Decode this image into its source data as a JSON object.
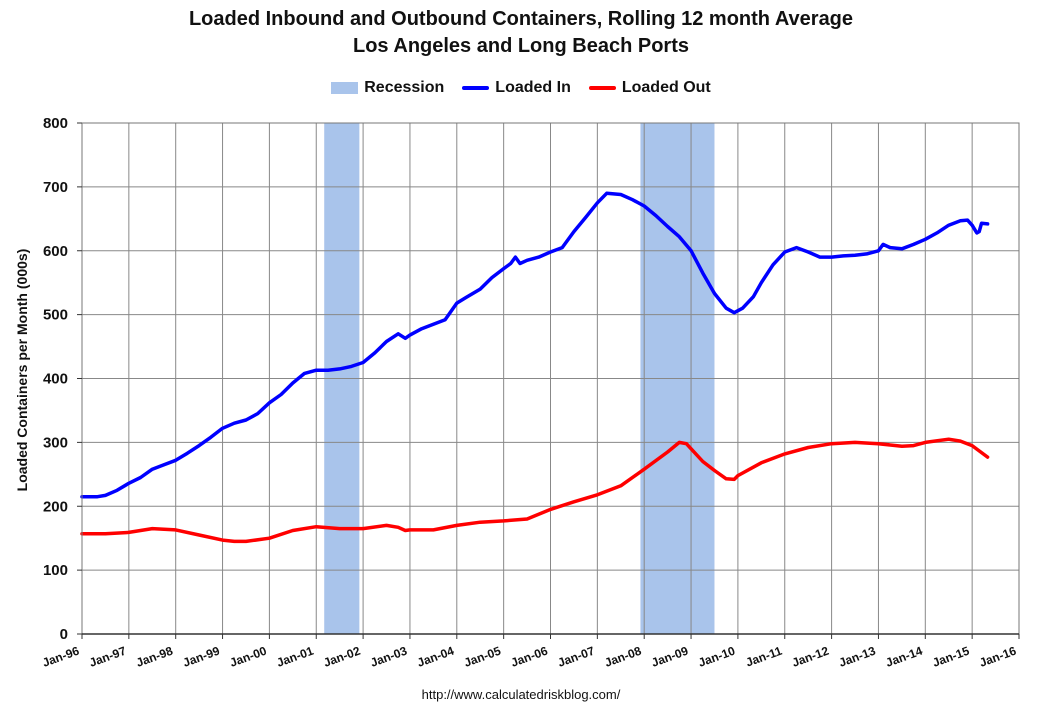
{
  "chart_data": {
    "type": "line",
    "title": "Loaded Inbound and Outbound Containers, Rolling 12 month Average",
    "subtitle": "Los Angeles and Long Beach Ports",
    "xlabel": "",
    "ylabel": "Loaded Containers per Month (000s)",
    "ylim": [
      0,
      800
    ],
    "yticks": [
      0,
      100,
      200,
      300,
      400,
      500,
      600,
      700,
      800
    ],
    "xlim": [
      1996.0,
      2016.0
    ],
    "xticks": [
      "Jan-96",
      "Jan-97",
      "Jan-98",
      "Jan-99",
      "Jan-00",
      "Jan-01",
      "Jan-02",
      "Jan-03",
      "Jan-04",
      "Jan-05",
      "Jan-06",
      "Jan-07",
      "Jan-08",
      "Jan-09",
      "Jan-10",
      "Jan-11",
      "Jan-12",
      "Jan-13",
      "Jan-14",
      "Jan-15",
      "Jan-16"
    ],
    "grid": true,
    "legend_position": "top-center",
    "legend": [
      "Recession",
      "Loaded In",
      "Loaded Out"
    ],
    "colors": {
      "recession": "#a9c4eb",
      "loaded_in": "#0000ff",
      "loaded_out": "#ff0000",
      "grid": "#888888"
    },
    "recessions": [
      {
        "start": 2001.17,
        "end": 2001.92
      },
      {
        "start": 2007.92,
        "end": 2009.5
      }
    ],
    "series": [
      {
        "name": "Loaded In",
        "points": [
          [
            1996.0,
            215
          ],
          [
            1996.33,
            215
          ],
          [
            1996.5,
            217
          ],
          [
            1996.75,
            225
          ],
          [
            1997.0,
            236
          ],
          [
            1997.25,
            245
          ],
          [
            1997.5,
            258
          ],
          [
            1997.75,
            265
          ],
          [
            1998.0,
            272
          ],
          [
            1998.25,
            283
          ],
          [
            1998.5,
            295
          ],
          [
            1998.75,
            308
          ],
          [
            1999.0,
            322
          ],
          [
            1999.25,
            330
          ],
          [
            1999.5,
            335
          ],
          [
            1999.75,
            345
          ],
          [
            2000.0,
            362
          ],
          [
            2000.25,
            375
          ],
          [
            2000.5,
            393
          ],
          [
            2000.75,
            408
          ],
          [
            2001.0,
            413
          ],
          [
            2001.25,
            413
          ],
          [
            2001.5,
            415
          ],
          [
            2001.75,
            419
          ],
          [
            2002.0,
            425
          ],
          [
            2002.25,
            440
          ],
          [
            2002.5,
            458
          ],
          [
            2002.75,
            470
          ],
          [
            2002.9,
            463
          ],
          [
            2003.0,
            468
          ],
          [
            2003.25,
            478
          ],
          [
            2003.5,
            485
          ],
          [
            2003.75,
            492
          ],
          [
            2004.0,
            518
          ],
          [
            2004.2,
            527
          ],
          [
            2004.5,
            540
          ],
          [
            2004.75,
            558
          ],
          [
            2005.0,
            572
          ],
          [
            2005.15,
            580
          ],
          [
            2005.25,
            590
          ],
          [
            2005.35,
            580
          ],
          [
            2005.5,
            585
          ],
          [
            2005.75,
            590
          ],
          [
            2006.0,
            598
          ],
          [
            2006.25,
            605
          ],
          [
            2006.5,
            630
          ],
          [
            2006.75,
            652
          ],
          [
            2007.0,
            675
          ],
          [
            2007.2,
            690
          ],
          [
            2007.5,
            688
          ],
          [
            2007.75,
            680
          ],
          [
            2008.0,
            670
          ],
          [
            2008.25,
            655
          ],
          [
            2008.5,
            638
          ],
          [
            2008.75,
            622
          ],
          [
            2009.0,
            600
          ],
          [
            2009.25,
            565
          ],
          [
            2009.5,
            533
          ],
          [
            2009.75,
            510
          ],
          [
            2009.92,
            503
          ],
          [
            2010.1,
            510
          ],
          [
            2010.33,
            528
          ],
          [
            2010.5,
            550
          ],
          [
            2010.75,
            578
          ],
          [
            2011.0,
            598
          ],
          [
            2011.25,
            605
          ],
          [
            2011.5,
            598
          ],
          [
            2011.75,
            590
          ],
          [
            2012.0,
            590
          ],
          [
            2012.25,
            592
          ],
          [
            2012.5,
            593
          ],
          [
            2012.75,
            595
          ],
          [
            2013.0,
            600
          ],
          [
            2013.1,
            610
          ],
          [
            2013.25,
            605
          ],
          [
            2013.5,
            603
          ],
          [
            2013.75,
            610
          ],
          [
            2014.0,
            618
          ],
          [
            2014.25,
            628
          ],
          [
            2014.5,
            640
          ],
          [
            2014.75,
            647
          ],
          [
            2014.9,
            648
          ],
          [
            2015.0,
            640
          ],
          [
            2015.1,
            628
          ],
          [
            2015.15,
            630
          ],
          [
            2015.2,
            643
          ],
          [
            2015.33,
            642
          ]
        ]
      },
      {
        "name": "Loaded Out",
        "points": [
          [
            1996.0,
            157
          ],
          [
            1996.5,
            157
          ],
          [
            1997.0,
            159
          ],
          [
            1997.5,
            165
          ],
          [
            1998.0,
            163
          ],
          [
            1998.5,
            155
          ],
          [
            1999.0,
            147
          ],
          [
            1999.25,
            145
          ],
          [
            1999.5,
            145
          ],
          [
            2000.0,
            150
          ],
          [
            2000.5,
            162
          ],
          [
            2001.0,
            168
          ],
          [
            2001.5,
            165
          ],
          [
            2002.0,
            165
          ],
          [
            2002.5,
            170
          ],
          [
            2002.75,
            167
          ],
          [
            2002.9,
            162
          ],
          [
            2003.0,
            163
          ],
          [
            2003.5,
            163
          ],
          [
            2004.0,
            170
          ],
          [
            2004.5,
            175
          ],
          [
            2005.0,
            177
          ],
          [
            2005.5,
            180
          ],
          [
            2006.0,
            195
          ],
          [
            2006.5,
            207
          ],
          [
            2007.0,
            218
          ],
          [
            2007.5,
            232
          ],
          [
            2008.0,
            258
          ],
          [
            2008.5,
            285
          ],
          [
            2008.75,
            300
          ],
          [
            2008.9,
            298
          ],
          [
            2009.0,
            290
          ],
          [
            2009.25,
            270
          ],
          [
            2009.5,
            256
          ],
          [
            2009.75,
            243
          ],
          [
            2009.92,
            242
          ],
          [
            2010.0,
            248
          ],
          [
            2010.5,
            268
          ],
          [
            2011.0,
            282
          ],
          [
            2011.5,
            292
          ],
          [
            2012.0,
            298
          ],
          [
            2012.5,
            300
          ],
          [
            2013.0,
            298
          ],
          [
            2013.5,
            294
          ],
          [
            2013.75,
            295
          ],
          [
            2014.0,
            300
          ],
          [
            2014.5,
            305
          ],
          [
            2014.75,
            302
          ],
          [
            2015.0,
            295
          ],
          [
            2015.33,
            277
          ]
        ]
      }
    ]
  },
  "footer": {
    "source_url": "http://www.calculatedriskblog.com/"
  }
}
